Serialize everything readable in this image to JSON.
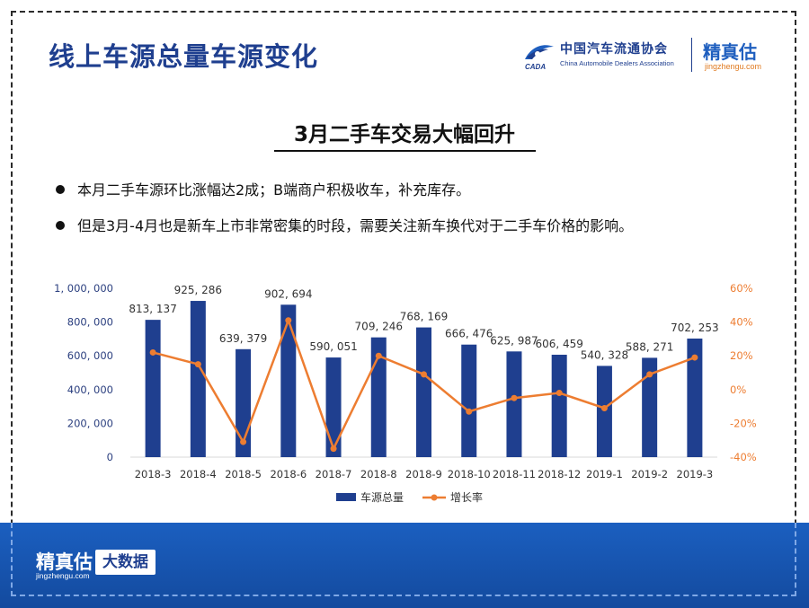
{
  "header": {
    "title": "线上车源总量车源变化",
    "org_name_cn": "中国汽车流通协会",
    "org_name_en": "China Automobile Dealers Association",
    "org_logo_text": "CADA",
    "brand_name": "精真估",
    "brand_url": "jingzhengu.com"
  },
  "subtitle": "3月二手车交易大幅回升",
  "bullets": [
    "本月二手车源环比涨幅达2成；B端商户积极收车，补充库存。",
    "但是3月-4月也是新车上市非常密集的时段，需要关注新车换代对于二手车价格的影响。"
  ],
  "footer": {
    "brand_name": "精真估",
    "brand_url": "jingzhengu.com",
    "badge": "大数据"
  },
  "colors": {
    "bar": "#1f3f8f",
    "line": "#ed7d31",
    "title_blue": "#1f3f8f",
    "footer_blue": "#1b5fc0"
  },
  "chart_data": {
    "type": "bar",
    "categories": [
      "2018-3",
      "2018-4",
      "2018-5",
      "2018-6",
      "2018-7",
      "2018-8",
      "2018-9",
      "2018-10",
      "2018-11",
      "2018-12",
      "2019-1",
      "2019-2",
      "2019-3"
    ],
    "series": [
      {
        "name": "车源总量",
        "type": "bar",
        "axis": "left",
        "values": [
          813137,
          925286,
          639379,
          902694,
          590051,
          709246,
          768169,
          666476,
          625987,
          606459,
          540328,
          588271,
          702253
        ],
        "labels": [
          "813, 137",
          "925, 286",
          "639, 379",
          "902, 694",
          "590, 051",
          "709, 246",
          "768, 169",
          "666, 476",
          "625, 987",
          "606, 459",
          "540, 328",
          "588, 271",
          "702, 253"
        ]
      },
      {
        "name": "增长率",
        "type": "line",
        "axis": "right",
        "values": [
          22,
          15,
          -31,
          41,
          -35,
          20,
          9,
          -13,
          -5,
          -2,
          -11,
          9,
          19
        ]
      }
    ],
    "y_left": {
      "min": 0,
      "max": 1000000,
      "ticks": [
        0,
        200000,
        400000,
        600000,
        800000,
        1000000
      ],
      "tick_labels": [
        "0",
        "200, 000",
        "400, 000",
        "600, 000",
        "800, 000",
        "1, 000, 000"
      ]
    },
    "y_right": {
      "min": -40,
      "max": 60,
      "ticks": [
        -40,
        -20,
        0,
        20,
        40,
        60
      ],
      "tick_labels": [
        "-40%",
        "-20%",
        "0%",
        "20%",
        "40%",
        "60%"
      ]
    },
    "grid": false,
    "legend_position": "bottom"
  }
}
